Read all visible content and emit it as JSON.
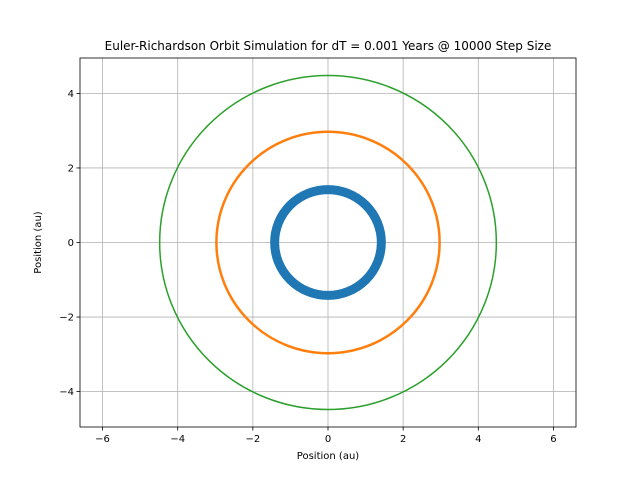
{
  "chart_data": {
    "type": "line",
    "title": "Euler-Richardson Orbit Simulation for dT = 0.001 Years @ 10000 Step Size",
    "xlabel": "Position (au)",
    "ylabel": "Position (au)",
    "xlim": [
      -6.6,
      6.6
    ],
    "ylim": [
      -4.95,
      4.95
    ],
    "xticks": [
      -6,
      -4,
      -2,
      0,
      2,
      4,
      6
    ],
    "yticks": [
      -4,
      -2,
      0,
      2,
      4
    ],
    "xtick_labels": [
      "−6",
      "−4",
      "−2",
      "0",
      "2",
      "4",
      "6"
    ],
    "ytick_labels": [
      "−4",
      "−2",
      "0",
      "2",
      "4"
    ],
    "grid": true,
    "aspect": "equal",
    "series": [
      {
        "shape": "circle",
        "center": [
          0,
          0
        ],
        "radius": 1.42,
        "color": "#1f77b4",
        "thickness": "thick"
      },
      {
        "shape": "circle",
        "center": [
          0,
          0
        ],
        "radius": 2.97,
        "color": "#ff7f0e",
        "thickness": "medium"
      },
      {
        "shape": "circle",
        "center": [
          0,
          0
        ],
        "radius": 4.48,
        "color": "#2ca02c",
        "thickness": "thin"
      }
    ]
  }
}
